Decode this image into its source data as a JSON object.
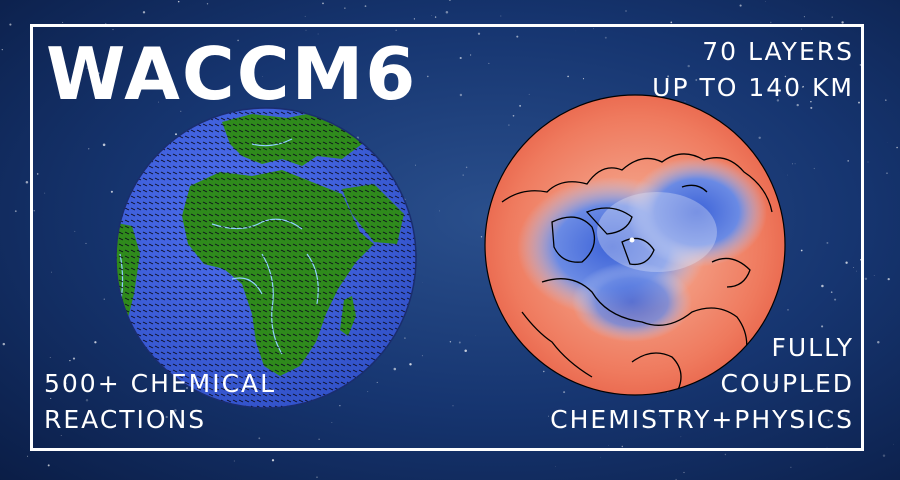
{
  "title": "WACCM6",
  "caption_top_right": [
    "70 LAYERS",
    "UP TO 140 KM"
  ],
  "caption_bottom_left": [
    "500+ CHEMICAL",
    "REACTIONS"
  ],
  "caption_bottom_right": [
    "FULLY",
    "COUPLED",
    "CHEMISTRY+PHYSICS"
  ],
  "colors": {
    "background": "#0d2452",
    "frame": "#ffffff",
    "ocean": "#3f5fd6",
    "land": "#2f8a1c",
    "rivers": "#8fd0ff",
    "heatmap_warm": "#ef6a52",
    "heatmap_cold": "#5b7fe0",
    "coastline": "#000000"
  },
  "icons": [
    "earth-globe-icon",
    "polar-heatmap-globe-icon"
  ]
}
